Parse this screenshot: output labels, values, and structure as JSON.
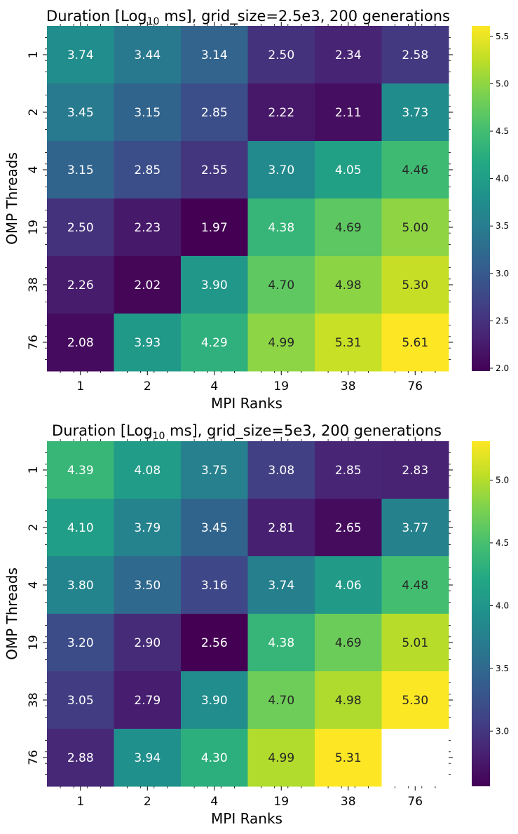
{
  "chart_data": [
    {
      "type": "heatmap",
      "title": "Duration [Log",
      "title_subscript": "10",
      "title_rest": " ms], grid_size=2.5e3, 200 generations",
      "xlabel": "MPI Ranks",
      "ylabel": "OMP Threads",
      "x_categories": [
        "1",
        "2",
        "4",
        "19",
        "38",
        "76"
      ],
      "y_categories": [
        "1",
        "2",
        "4",
        "19",
        "38",
        "76"
      ],
      "values": [
        [
          3.74,
          3.44,
          3.14,
          2.5,
          2.34,
          2.58
        ],
        [
          3.45,
          3.15,
          2.85,
          2.22,
          2.11,
          3.73
        ],
        [
          3.15,
          2.85,
          2.55,
          3.7,
          4.05,
          4.46
        ],
        [
          2.5,
          2.23,
          1.97,
          4.38,
          4.69,
          5.0
        ],
        [
          2.26,
          2.02,
          3.9,
          4.7,
          4.98,
          5.3
        ],
        [
          2.08,
          3.93,
          4.29,
          4.99,
          5.31,
          5.61
        ]
      ],
      "colormap": "viridis",
      "vmin": 1.97,
      "vmax": 5.61,
      "colorbar_ticks": [
        "2.0",
        "2.5",
        "3.0",
        "3.5",
        "4.0",
        "4.5",
        "5.0",
        "5.5"
      ],
      "colorbar_tick_values": [
        2.0,
        2.5,
        3.0,
        3.5,
        4.0,
        4.5,
        5.0,
        5.5
      ]
    },
    {
      "type": "heatmap",
      "title": "Duration [Log",
      "title_subscript": "10",
      "title_rest": " ms], grid_size=5e3, 200 generations",
      "xlabel": "MPI Ranks",
      "ylabel": "OMP Threads",
      "x_categories": [
        "1",
        "2",
        "4",
        "19",
        "38",
        "76"
      ],
      "y_categories": [
        "1",
        "2",
        "4",
        "19",
        "38",
        "76"
      ],
      "values": [
        [
          4.39,
          4.08,
          3.75,
          3.08,
          2.85,
          2.83
        ],
        [
          4.1,
          3.79,
          3.45,
          2.81,
          2.65,
          3.77
        ],
        [
          3.8,
          3.5,
          3.16,
          3.74,
          4.06,
          4.48
        ],
        [
          3.2,
          2.9,
          2.56,
          4.38,
          4.69,
          5.01
        ],
        [
          3.05,
          2.79,
          3.9,
          4.7,
          4.98,
          5.3
        ],
        [
          2.88,
          3.94,
          4.3,
          4.99,
          5.31,
          null
        ]
      ],
      "colormap": "viridis",
      "vmin": 2.56,
      "vmax": 5.31,
      "colorbar_ticks": [
        "3.0",
        "3.5",
        "4.0",
        "4.5",
        "5.0"
      ],
      "colorbar_tick_values": [
        3.0,
        3.5,
        4.0,
        4.5,
        5.0
      ]
    }
  ]
}
